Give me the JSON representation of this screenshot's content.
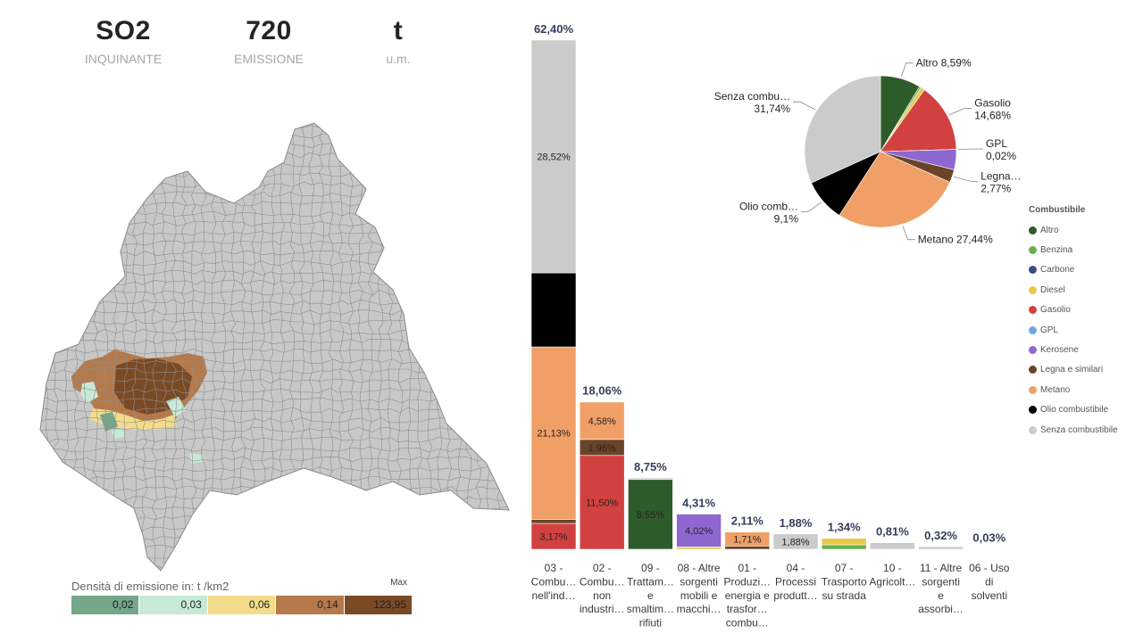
{
  "kpis": [
    {
      "value": "SO2",
      "label": "INQUINANTE"
    },
    {
      "value": "720",
      "label": "EMISSIONE"
    },
    {
      "value": "t",
      "label": "u.m."
    }
  ],
  "map_legend": {
    "title": "Densità di emissione in:  t /km2",
    "max_label": "Max",
    "bins": [
      {
        "label": "0,02",
        "color": "#74a68a"
      },
      {
        "label": "0,03",
        "color": "#c7ead6"
      },
      {
        "label": "0,06",
        "color": "#f3dc8c"
      },
      {
        "label": "0,14",
        "color": "#b5794b"
      },
      {
        "label": "123,95",
        "color": "#7a4a25"
      }
    ],
    "base_color": "#c8c8c8"
  },
  "colors": {
    "Altro": "#2e5b2a",
    "Benzina": "#6ab04c",
    "Carbone": "#3c4d87",
    "Diesel": "#e9c84a",
    "Gasolio": "#d0413f",
    "GPL": "#6fa8dc",
    "Kerosene": "#8e67d0",
    "Legna e similari": "#6b4428",
    "Metano": "#f0a066",
    "Olio combustibile": "#000000",
    "Senza combustibile": "#cbcbcb"
  },
  "legend": {
    "title": "Combustibile",
    "items": [
      "Altro",
      "Benzina",
      "Carbone",
      "Diesel",
      "Gasolio",
      "GPL",
      "Kerosene",
      "Legna e similari",
      "Metano",
      "Olio combustibile",
      "Senza combustibile"
    ]
  },
  "chart_data": [
    {
      "type": "bar",
      "stacked": true,
      "ylim": [
        0,
        62.4
      ],
      "categories": [
        {
          "short": [
            "03 -",
            "Combu…",
            "nell'ind…"
          ],
          "total": 62.4,
          "total_label": "62,40%",
          "segments": [
            {
              "fuel": "Gasolio",
              "value": 3.17,
              "label": "3,17%"
            },
            {
              "fuel": "Legna e similari",
              "value": 0.5,
              "label": ""
            },
            {
              "fuel": "Metano",
              "value": 21.13,
              "label": "21,13%"
            },
            {
              "fuel": "Olio combustibile",
              "value": 9.08,
              "label": ""
            },
            {
              "fuel": "Senza combustibile",
              "value": 28.52,
              "label": "28,52%"
            }
          ]
        },
        {
          "short": [
            "02 -",
            "Combu…",
            "non",
            "industri…"
          ],
          "total": 18.06,
          "total_label": "18,06%",
          "segments": [
            {
              "fuel": "Gasolio",
              "value": 11.5,
              "label": "11,50%"
            },
            {
              "fuel": "Legna e similari",
              "value": 1.96,
              "label": "1,96%"
            },
            {
              "fuel": "Metano",
              "value": 4.58,
              "label": "4,58%"
            }
          ]
        },
        {
          "short": [
            "09 -",
            "Trattam…",
            "e",
            "smaltim…",
            "rifiuti"
          ],
          "total": 8.75,
          "total_label": "8,75%",
          "segments": [
            {
              "fuel": "Altro",
              "value": 8.55,
              "label": "8,55%"
            },
            {
              "fuel": "Senza combustibile",
              "value": 0.2,
              "label": ""
            }
          ]
        },
        {
          "short": [
            "08 - Altre",
            "sorgenti",
            "mobili e",
            "macchi…"
          ],
          "total": 4.31,
          "total_label": "4,31%",
          "segments": [
            {
              "fuel": "Diesel",
              "value": 0.29,
              "label": ""
            },
            {
              "fuel": "Kerosene",
              "value": 4.02,
              "label": "4,02%"
            }
          ]
        },
        {
          "short": [
            "01 -",
            "Produzi…",
            "energia e",
            "trasfor…",
            "combu…"
          ],
          "total": 2.11,
          "total_label": "2,11%",
          "segments": [
            {
              "fuel": "Legna e similari",
              "value": 0.4,
              "label": ""
            },
            {
              "fuel": "Metano",
              "value": 1.71,
              "label": "1,71%"
            }
          ]
        },
        {
          "short": [
            "04 -",
            "Processi",
            "produtt…"
          ],
          "total": 1.88,
          "total_label": "1,88%",
          "segments": [
            {
              "fuel": "Senza combustibile",
              "value": 1.88,
              "label": "1,88%"
            }
          ]
        },
        {
          "short": [
            "07 -",
            "Trasporto",
            "su strada"
          ],
          "total": 1.34,
          "total_label": "1,34%",
          "segments": [
            {
              "fuel": "Benzina",
              "value": 0.55,
              "label": ""
            },
            {
              "fuel": "Diesel",
              "value": 0.79,
              "label": ""
            }
          ]
        },
        {
          "short": [
            "10 -",
            "Agricolt…"
          ],
          "total": 0.81,
          "total_label": "0,81%",
          "segments": [
            {
              "fuel": "Senza combustibile",
              "value": 0.81,
              "label": ""
            }
          ]
        },
        {
          "short": [
            "11 - Altre",
            "sorgenti",
            "e",
            "assorbi…"
          ],
          "total": 0.32,
          "total_label": "0,32%",
          "segments": [
            {
              "fuel": "Senza combustibile",
              "value": 0.32,
              "label": ""
            }
          ]
        },
        {
          "short": [
            "06 - Uso",
            "di",
            "solventi"
          ],
          "total": 0.03,
          "total_label": "0,03%",
          "segments": [
            {
              "fuel": "Senza combustibile",
              "value": 0.03,
              "label": ""
            }
          ]
        }
      ]
    },
    {
      "type": "pie",
      "slices": [
        {
          "fuel": "Altro",
          "value": 8.59,
          "label": [
            "Altro 8,59%"
          ]
        },
        {
          "fuel": "Benzina",
          "value": 0.4,
          "label": []
        },
        {
          "fuel": "Diesel",
          "value": 0.83,
          "label": []
        },
        {
          "fuel": "Gasolio",
          "value": 14.68,
          "label": [
            "Gasolio",
            "14,68%"
          ]
        },
        {
          "fuel": "GPL",
          "value": 0.02,
          "label": [
            "GPL",
            "0,02%"
          ]
        },
        {
          "fuel": "Kerosene",
          "value": 4.31,
          "label": []
        },
        {
          "fuel": "Legna e similari",
          "value": 2.77,
          "label": [
            "Legna…",
            "2,77%"
          ]
        },
        {
          "fuel": "Metano",
          "value": 27.44,
          "label": [
            "Metano 27,44%"
          ]
        },
        {
          "fuel": "Olio combustibile",
          "value": 9.1,
          "label": [
            "Olio comb…",
            "9,1%"
          ]
        },
        {
          "fuel": "Senza combustibile",
          "value": 31.74,
          "label": [
            "Senza combu…",
            "31,74%"
          ]
        }
      ]
    }
  ]
}
